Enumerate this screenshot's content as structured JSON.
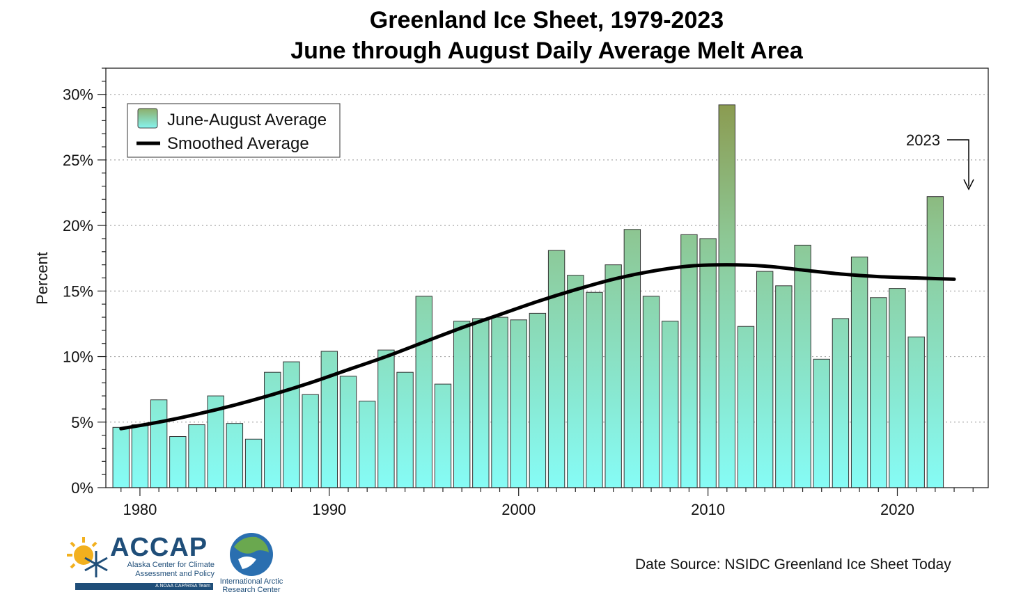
{
  "chart_data": {
    "type": "bar",
    "title": "Greenland Ice Sheet, 1979-2023",
    "subtitle": "June through August Daily Average Melt Area",
    "ylabel": "Percent",
    "xlabel": "",
    "ylim": [
      0,
      32
    ],
    "xlim": [
      1978.2,
      2024.8
    ],
    "yticks": [
      "0%",
      "5%",
      "10%",
      "15%",
      "20%",
      "25%",
      "30%"
    ],
    "ytick_values": [
      0,
      5,
      10,
      15,
      20,
      25,
      30
    ],
    "xticks": [
      "1980",
      "1990",
      "2000",
      "2010",
      "2020"
    ],
    "xtick_values": [
      1980,
      1990,
      2000,
      2010,
      2020
    ],
    "grid": "horizontal dotted",
    "legend_placement": "top-left",
    "colors": {
      "bar_top": "#8fa05a",
      "bar_bottom": "#86f7f2",
      "smooth": "#000000",
      "grid": "#aaaaaa"
    },
    "series": [
      {
        "name": "June-August Average",
        "kind": "bar",
        "x": [
          1979,
          1980,
          1981,
          1982,
          1983,
          1984,
          1985,
          1986,
          1987,
          1988,
          1989,
          1990,
          1991,
          1992,
          1993,
          1994,
          1995,
          1996,
          1997,
          1998,
          1999,
          2000,
          2001,
          2002,
          2003,
          2004,
          2005,
          2006,
          2007,
          2008,
          2009,
          2010,
          2011,
          2012,
          2013,
          2014,
          2015,
          2016,
          2017,
          2018,
          2019,
          2020,
          2021,
          2022,
          2023
        ],
        "values": [
          4.6,
          4.8,
          6.7,
          3.9,
          4.8,
          7.0,
          4.9,
          3.7,
          8.8,
          9.6,
          7.1,
          10.4,
          8.5,
          6.6,
          10.5,
          8.8,
          14.6,
          7.9,
          12.7,
          12.9,
          13.0,
          12.8,
          13.3,
          18.1,
          16.2,
          14.9,
          17.0,
          19.7,
          14.6,
          12.7,
          19.3,
          19.0,
          29.2,
          12.3,
          16.5,
          15.4,
          18.5,
          9.8,
          12.9,
          17.6,
          14.5,
          15.2,
          11.5,
          22.2,
          0
        ]
      },
      {
        "name": "Smoothed Average",
        "kind": "line",
        "x": [
          1979,
          1981,
          1983,
          1985,
          1987,
          1989,
          1991,
          1993,
          1995,
          1997,
          1999,
          2001,
          2003,
          2005,
          2007,
          2009,
          2011,
          2013,
          2015,
          2017,
          2019,
          2021,
          2023
        ],
        "values": [
          4.5,
          5.0,
          5.6,
          6.3,
          7.1,
          8.0,
          9.0,
          10.0,
          11.1,
          12.2,
          13.2,
          14.2,
          15.1,
          15.9,
          16.5,
          16.9,
          17.0,
          16.9,
          16.6,
          16.3,
          16.1,
          16.0,
          15.9
        ]
      }
    ],
    "annotations": [
      {
        "text": "2023",
        "target_year": 2023
      }
    ]
  },
  "footer": {
    "source": "Date Source: NSIDC Greenland Ice Sheet Today",
    "accap_name": "ACCAP",
    "accap_line1": "Alaska Center for Climate",
    "accap_line2": "Assessment and Policy",
    "accap_band": "A NOAA CAP/RISA Team",
    "iarc_line1": "International Arctic",
    "iarc_line2": "Research Center"
  }
}
